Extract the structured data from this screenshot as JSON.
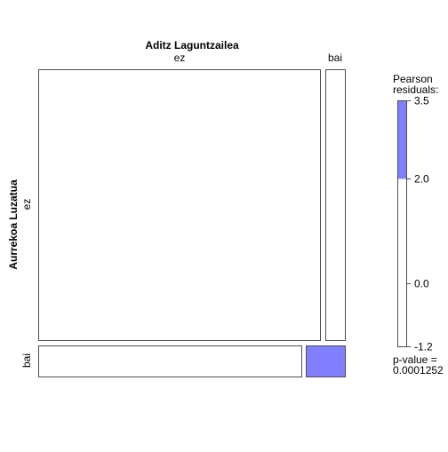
{
  "chart_data": {
    "type": "mosaic",
    "title": "",
    "column_variable": "Aditz Laguntzailea",
    "row_variable": "Aurrekoa Luzatua",
    "column_levels": [
      "ez",
      "bai"
    ],
    "row_levels": [
      "ez",
      "bai"
    ],
    "cells": [
      {
        "row": "ez",
        "col": "ez",
        "residual_shading": "none"
      },
      {
        "row": "ez",
        "col": "bai",
        "residual_shading": "none"
      },
      {
        "row": "bai",
        "col": "ez",
        "residual_shading": "none"
      },
      {
        "row": "bai",
        "col": "bai",
        "residual_shading": "positive_above_2"
      }
    ],
    "legend": {
      "title_line1": "Pearson",
      "title_line2": "residuals:",
      "ticks": [
        3.5,
        2.0,
        0.0,
        -1.2
      ],
      "tick_labels": [
        "3.5",
        "2.0",
        "0.0",
        "-1.2"
      ],
      "range": [
        -1.2,
        3.5
      ],
      "shaded_range": [
        2.0,
        3.5
      ],
      "p_value_label": "p-value =",
      "p_value": "0.0001252"
    },
    "colors": {
      "positive_shade": "#8080ff",
      "border": "#4d4d4d",
      "background": "#ffffff"
    }
  }
}
